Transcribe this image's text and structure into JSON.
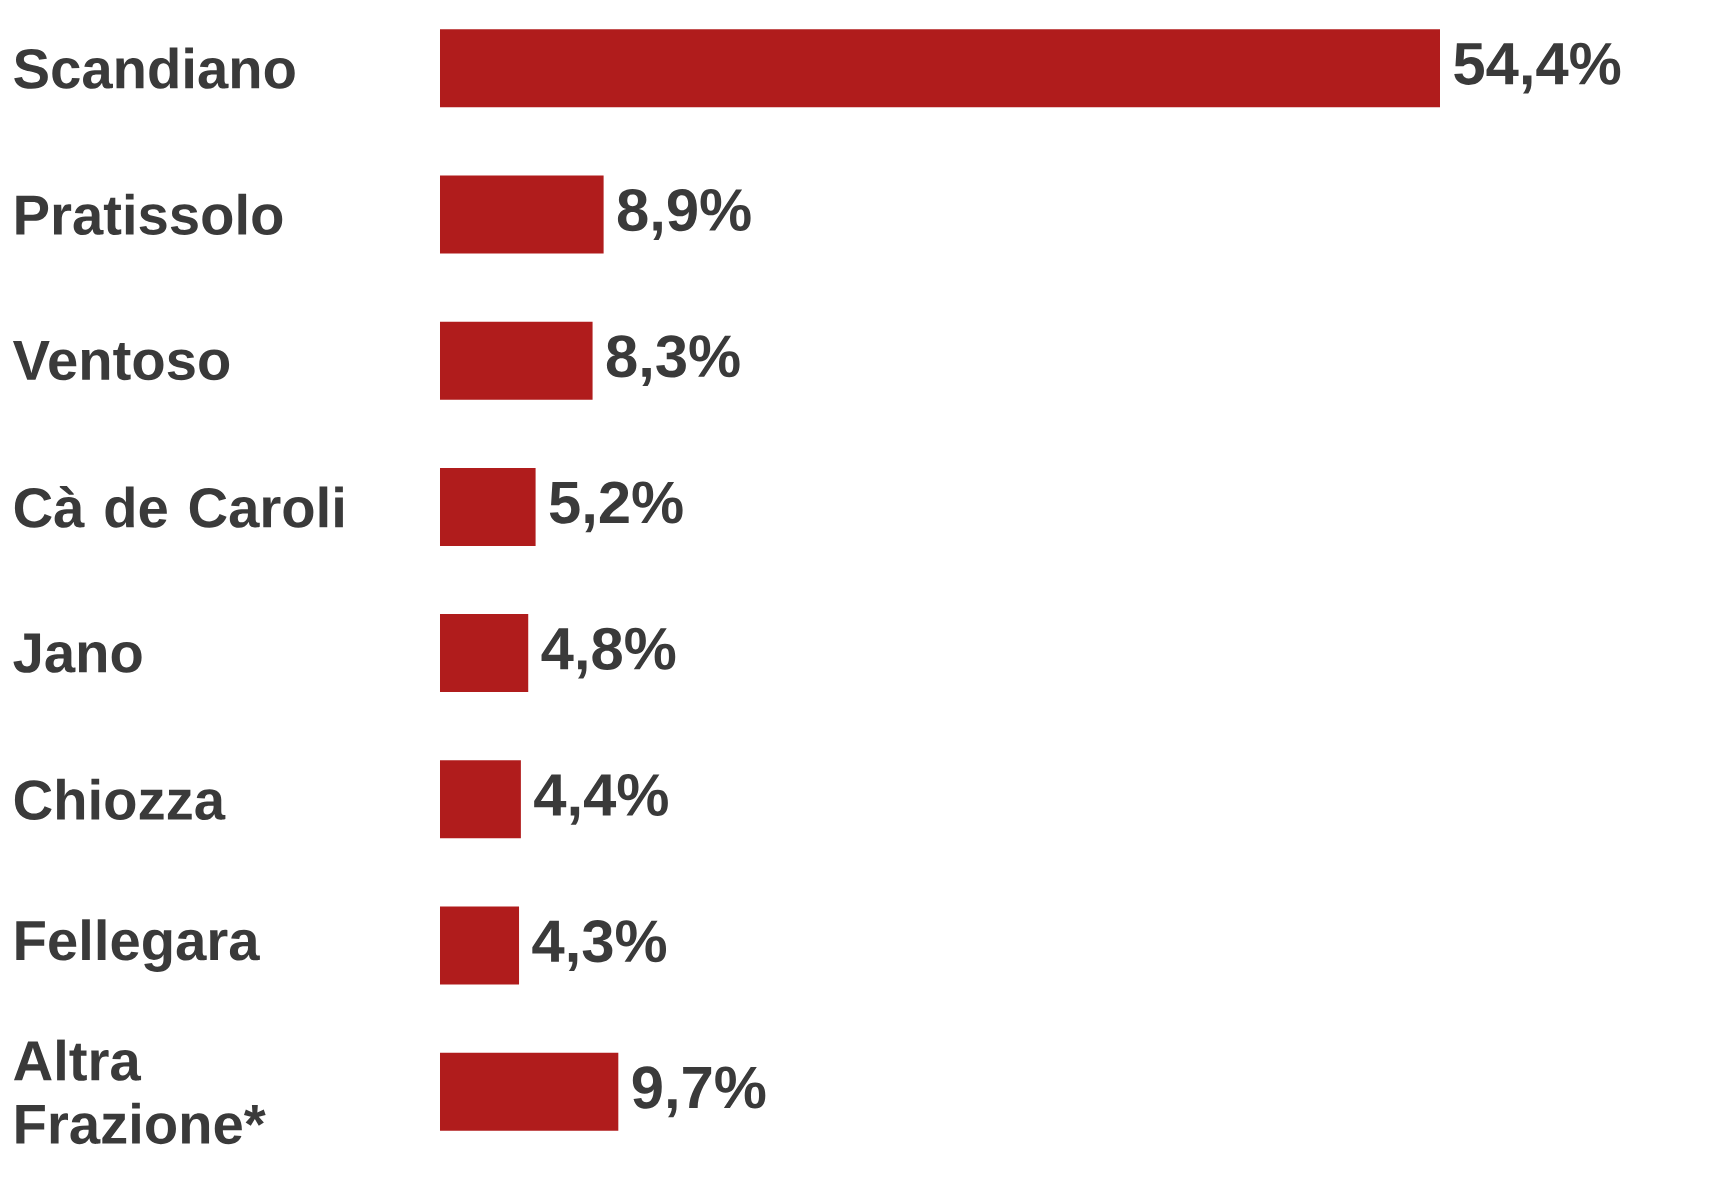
{
  "chart_data": {
    "type": "bar",
    "orientation": "horizontal",
    "categories": [
      "Scandiano",
      "Pratissolo",
      "Ventoso",
      "Cà de Caroli",
      "Jano",
      "Chiozza",
      "Fellegara",
      "Altra Frazione*"
    ],
    "values": [
      54.4,
      8.9,
      8.3,
      5.2,
      4.8,
      4.4,
      4.3,
      9.7
    ],
    "value_labels": [
      "54,4%",
      "8,9%",
      "8,3%",
      "5,2%",
      "4,8%",
      "4,4%",
      "4,3%",
      "9,7%"
    ],
    "color": "#b01c1c"
  }
}
